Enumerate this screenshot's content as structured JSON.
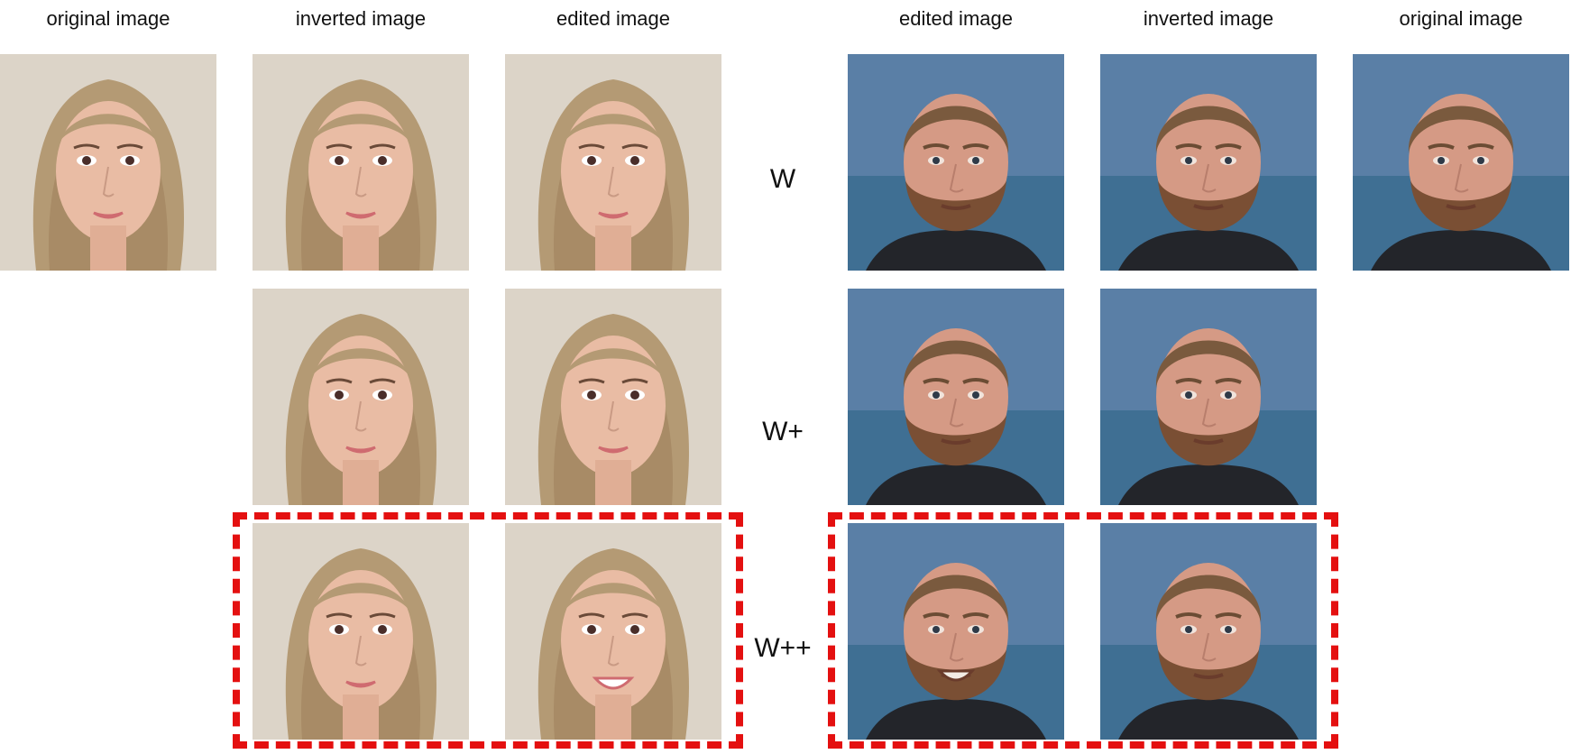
{
  "column_headers": {
    "left_original": "original image",
    "left_inverted": "inverted image",
    "left_edited": "edited image",
    "right_edited": "edited image",
    "right_inverted": "inverted image",
    "right_original": "original image"
  },
  "row_labels": {
    "w": "W",
    "w_plus": "W+",
    "w_plus_plus": "W++"
  },
  "highlight_color": "#e41010",
  "subjects": {
    "woman": {
      "background": "#dcd4c8",
      "hair": "#b49a74",
      "skin": "#e9bca4",
      "lips": "#cf6b70"
    },
    "man": {
      "background": "#5a7fa6",
      "sea": "#3f6f93",
      "hair": "#7a5a3e",
      "skin": "#d59a85",
      "beard": "#7a4f34",
      "shirt": "#23252a"
    }
  }
}
